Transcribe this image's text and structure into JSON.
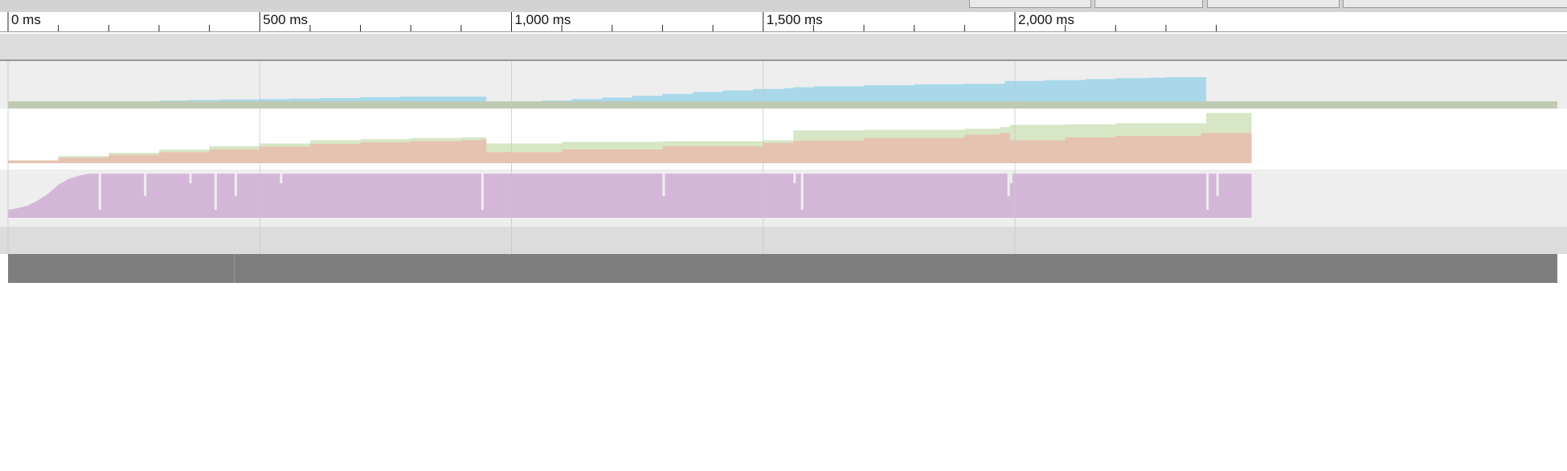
{
  "toolbar": {
    "button_count": 4
  },
  "ruler": {
    "unit": "ms",
    "major_ticks": [
      {
        "value": 0,
        "label": "0 ms"
      },
      {
        "value": 500,
        "label": "500 ms"
      },
      {
        "value": 1000,
        "label": "1,000 ms"
      },
      {
        "value": 1500,
        "label": "1,500 ms"
      },
      {
        "value": 2000,
        "label": "2,000 ms"
      }
    ],
    "minor_step": 100,
    "range_ms": [
      0,
      2460
    ]
  },
  "tracks": [
    {
      "name": "js-heap",
      "fill": "#a8d8ea",
      "base_fill": "#bfcab4",
      "background": "#eeeeee",
      "values": [
        [
          0,
          0.05
        ],
        [
          60,
          0.07
        ],
        [
          120,
          0.1
        ],
        [
          180,
          0.13
        ],
        [
          240,
          0.15
        ],
        [
          300,
          0.17
        ],
        [
          360,
          0.18
        ],
        [
          420,
          0.19
        ],
        [
          500,
          0.2
        ],
        [
          560,
          0.21
        ],
        [
          620,
          0.22
        ],
        [
          700,
          0.24
        ],
        [
          780,
          0.25
        ],
        [
          900,
          0.25
        ],
        [
          940,
          0.25
        ],
        [
          950,
          0.05
        ],
        [
          1000,
          0.15
        ],
        [
          1060,
          0.17
        ],
        [
          1120,
          0.2
        ],
        [
          1180,
          0.23
        ],
        [
          1240,
          0.27
        ],
        [
          1300,
          0.31
        ],
        [
          1360,
          0.35
        ],
        [
          1420,
          0.38
        ],
        [
          1480,
          0.41
        ],
        [
          1540,
          0.43
        ],
        [
          1560,
          0.45
        ],
        [
          1600,
          0.47
        ],
        [
          1700,
          0.49
        ],
        [
          1800,
          0.51
        ],
        [
          1900,
          0.52
        ],
        [
          1960,
          0.52
        ],
        [
          1980,
          0.58
        ],
        [
          2060,
          0.6
        ],
        [
          2140,
          0.62
        ],
        [
          2200,
          0.64
        ],
        [
          2260,
          0.65
        ],
        [
          2300,
          0.66
        ],
        [
          2370,
          0.66
        ],
        [
          2380,
          0.1
        ],
        [
          2470,
          0.1
        ]
      ]
    },
    {
      "name": "memory-stacked",
      "bottom_fill": "#e6c2b1",
      "top_fill": "#d7e6c4",
      "background": "#ffffff",
      "bottom_values": [
        [
          0,
          0.05
        ],
        [
          100,
          0.1
        ],
        [
          200,
          0.15
        ],
        [
          300,
          0.2
        ],
        [
          400,
          0.25
        ],
        [
          500,
          0.3
        ],
        [
          600,
          0.35
        ],
        [
          700,
          0.38
        ],
        [
          800,
          0.4
        ],
        [
          900,
          0.42
        ],
        [
          940,
          0.43
        ],
        [
          950,
          0.2
        ],
        [
          1100,
          0.25
        ],
        [
          1300,
          0.31
        ],
        [
          1500,
          0.37
        ],
        [
          1560,
          0.41
        ],
        [
          1700,
          0.46
        ],
        [
          1900,
          0.52
        ],
        [
          1970,
          0.55
        ],
        [
          1990,
          0.42
        ],
        [
          2100,
          0.47
        ],
        [
          2200,
          0.5
        ],
        [
          2370,
          0.55
        ],
        [
          2380,
          0.55
        ],
        [
          2470,
          0.55
        ]
      ],
      "top_values": [
        [
          0,
          0.05
        ],
        [
          100,
          0.13
        ],
        [
          200,
          0.19
        ],
        [
          300,
          0.25
        ],
        [
          400,
          0.31
        ],
        [
          500,
          0.36
        ],
        [
          600,
          0.42
        ],
        [
          700,
          0.44
        ],
        [
          800,
          0.46
        ],
        [
          900,
          0.47
        ],
        [
          940,
          0.47
        ],
        [
          950,
          0.36
        ],
        [
          1100,
          0.39
        ],
        [
          1300,
          0.4
        ],
        [
          1500,
          0.42
        ],
        [
          1560,
          0.6
        ],
        [
          1700,
          0.61
        ],
        [
          1900,
          0.63
        ],
        [
          1970,
          0.66
        ],
        [
          1990,
          0.7
        ],
        [
          2100,
          0.71
        ],
        [
          2200,
          0.73
        ],
        [
          2370,
          0.73
        ],
        [
          2380,
          0.92
        ],
        [
          2470,
          0.92
        ]
      ]
    },
    {
      "name": "cpu-activity",
      "fill": "#d4b7d8",
      "background": "#eeeeee",
      "dips_ms": [
        180,
        270,
        360,
        410,
        450,
        540,
        940,
        1300,
        1560,
        1575,
        1985,
        1990,
        2380,
        2400
      ],
      "ramp": [
        [
          0,
          0.18
        ],
        [
          20,
          0.22
        ],
        [
          40,
          0.28
        ],
        [
          60,
          0.4
        ],
        [
          80,
          0.55
        ],
        [
          100,
          0.75
        ],
        [
          120,
          0.88
        ],
        [
          140,
          0.95
        ],
        [
          160,
          1.0
        ]
      ]
    }
  ],
  "overview": {
    "fill": "#7e7e7e",
    "divider_ms": 450
  }
}
